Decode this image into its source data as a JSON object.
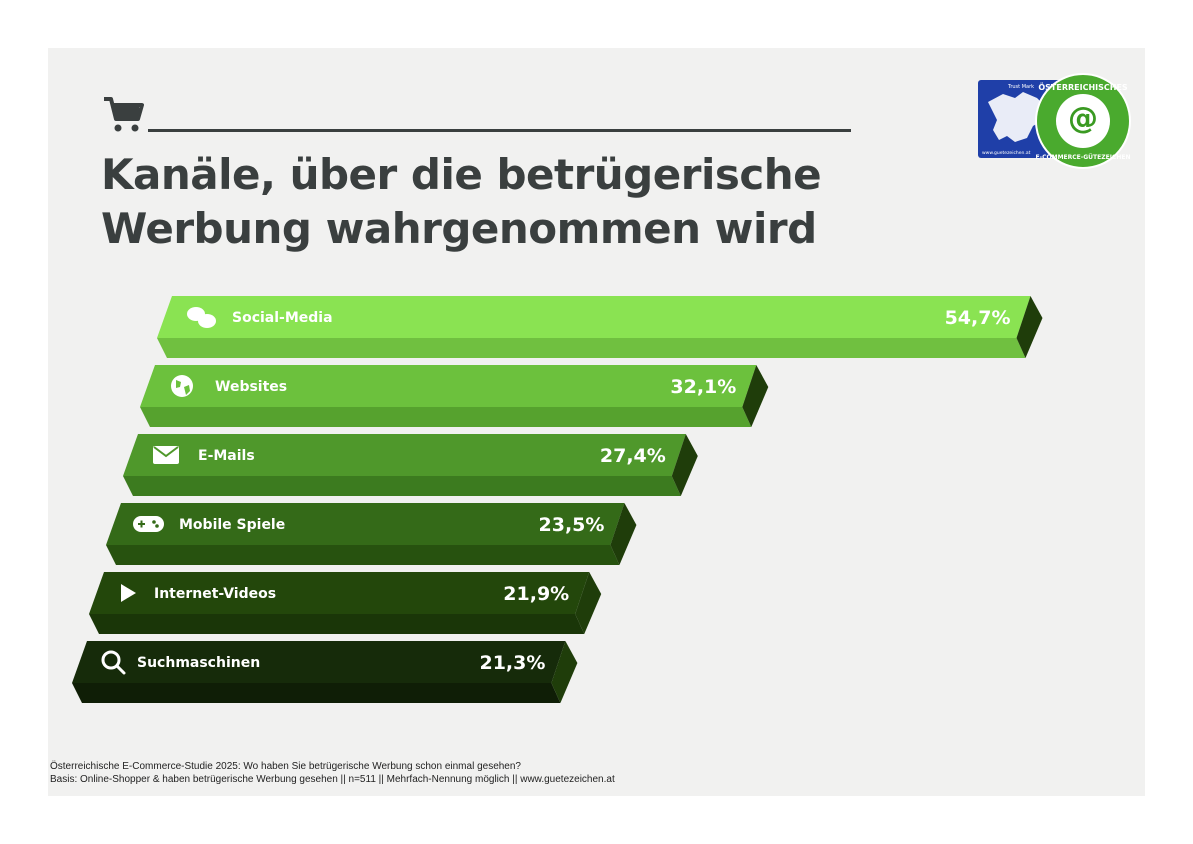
{
  "header": {
    "title_line1": "Kanäle, über die betrügerische",
    "title_line2": "Werbung wahrgenommen wird",
    "icon": "shopping-cart-icon"
  },
  "logo": {
    "text_top": "ÖSTERREICHISCHES",
    "text_bottom": "E-COMMERCE-GÜTEZEICHEN",
    "badge_text": "European Trust Mark",
    "badge_url": "www.guetezeichen.at"
  },
  "chart_data": {
    "type": "bar",
    "orientation": "horizontal",
    "title": "Kanäle, über die betrügerische Werbung wahrgenommen wird",
    "categories": [
      "Social-Media",
      "Websites",
      "E-Mails",
      "Mobile Spiele",
      "Internet-Videos",
      "Suchmaschinen"
    ],
    "values": [
      54.7,
      32.1,
      27.4,
      23.5,
      21.9,
      21.3
    ],
    "value_labels": [
      "54,7%",
      "32,1%",
      "27,4%",
      "23,5%",
      "21,9%",
      "21,3%"
    ],
    "icons": [
      "chat-bubbles-icon",
      "globe-icon",
      "envelope-icon",
      "gamepad-icon",
      "play-icon",
      "search-icon"
    ],
    "colors": [
      {
        "top": "#8ae352",
        "bottom": "#70c040"
      },
      {
        "top": "#6cc13d",
        "bottom": "#56a22e"
      },
      {
        "top": "#4f982b",
        "bottom": "#3c7b1f"
      },
      {
        "top": "#346a18",
        "bottom": "#27520f"
      },
      {
        "top": "#23470b",
        "bottom": "#1a3608"
      },
      {
        "top": "#162b0a",
        "bottom": "#0f1e06"
      }
    ],
    "end_color": "#1f3d0a",
    "unit": "%",
    "grid": false
  },
  "footer": {
    "line1": "Österreichische E-Commerce-Studie 2025: Wo haben Sie betrügerische Werbung schon einmal gesehen?",
    "line2": "Basis: Online-Shopper & haben betrügerische Werbung gesehen || n=511 || Mehrfach-Nennung möglich || www.guetezeichen.at"
  }
}
